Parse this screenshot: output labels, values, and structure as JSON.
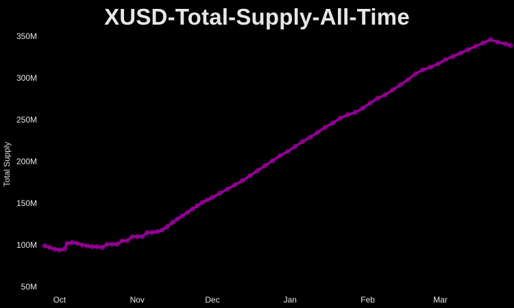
{
  "chart_data": {
    "type": "line",
    "title": "XUSD-Total-Supply-All-Time",
    "xlabel": "",
    "ylabel": "Total Supply",
    "grid": false,
    "line_color": "#990099",
    "marker": "open-circle",
    "background": "#000000",
    "xlim": [
      "2023-09-25",
      "2024-03-29"
    ],
    "ylim": [
      45,
      355
    ],
    "x_ticks": [
      {
        "date": "2023-10-01",
        "label": "Oct"
      },
      {
        "date": "2023-11-01",
        "label": "Nov"
      },
      {
        "date": "2023-12-01",
        "label": "Dec"
      },
      {
        "date": "2024-01-01",
        "label": "Jan"
      },
      {
        "date": "2024-02-01",
        "label": "Feb"
      },
      {
        "date": "2024-03-01",
        "label": "Mar"
      }
    ],
    "y_ticks": [
      {
        "value": 50,
        "label": "50M"
      },
      {
        "value": 100,
        "label": "100M"
      },
      {
        "value": 150,
        "label": "150M"
      },
      {
        "value": 200,
        "label": "200M"
      },
      {
        "value": 250,
        "label": "250M"
      },
      {
        "value": 300,
        "label": "300M"
      },
      {
        "value": 350,
        "label": "350M"
      }
    ],
    "y_unit": "millions",
    "series": [
      {
        "x": [
          "2023-09-25",
          "2023-09-27",
          "2023-09-29",
          "2023-10-01",
          "2023-10-03",
          "2023-10-04",
          "2023-10-06",
          "2023-10-08",
          "2023-10-10",
          "2023-10-12",
          "2023-10-14",
          "2023-10-16",
          "2023-10-18",
          "2023-10-20",
          "2023-10-22",
          "2023-10-24",
          "2023-10-26",
          "2023-10-28",
          "2023-10-30",
          "2023-11-01",
          "2023-11-03",
          "2023-11-05",
          "2023-11-07",
          "2023-11-09",
          "2023-11-11",
          "2023-11-13",
          "2023-11-15",
          "2023-11-17",
          "2023-11-19",
          "2023-11-21",
          "2023-11-23",
          "2023-11-25",
          "2023-11-27",
          "2023-11-29",
          "2023-12-01",
          "2023-12-04",
          "2023-12-07",
          "2023-12-10",
          "2023-12-13",
          "2023-12-16",
          "2023-12-19",
          "2023-12-22",
          "2023-12-25",
          "2023-12-28",
          "2023-12-31",
          "2024-01-03",
          "2024-01-06",
          "2024-01-09",
          "2024-01-12",
          "2024-01-15",
          "2024-01-18",
          "2024-01-21",
          "2024-01-24",
          "2024-01-27",
          "2024-01-30",
          "2024-02-02",
          "2024-02-05",
          "2024-02-08",
          "2024-02-11",
          "2024-02-14",
          "2024-02-17",
          "2024-02-20",
          "2024-02-23",
          "2024-02-26",
          "2024-02-29",
          "2024-03-03",
          "2024-03-06",
          "2024-03-09",
          "2024-03-12",
          "2024-03-15",
          "2024-03-18",
          "2024-03-21",
          "2024-03-24",
          "2024-03-27",
          "2024-03-29"
        ],
        "values": [
          99,
          97,
          95,
          94,
          95,
          102,
          103,
          102,
          100,
          99,
          98,
          98,
          97,
          101,
          101,
          101,
          105,
          105,
          110,
          110,
          110,
          115,
          115,
          116,
          118,
          122,
          127,
          131,
          135,
          139,
          143,
          147,
          151,
          154,
          157,
          162,
          167,
          172,
          177,
          183,
          189,
          195,
          201,
          207,
          212,
          218,
          224,
          229,
          235,
          241,
          246,
          252,
          256,
          259,
          264,
          270,
          276,
          280,
          286,
          292,
          298,
          305,
          310,
          313,
          317,
          322,
          326,
          330,
          334,
          338,
          342,
          346,
          343,
          341,
          339
        ]
      }
    ]
  }
}
